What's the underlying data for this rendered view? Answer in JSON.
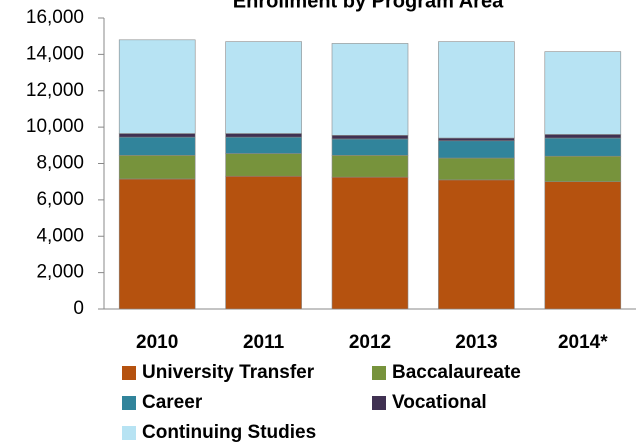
{
  "chart_data": {
    "type": "stacked_bar",
    "title": "Enrollment by Program Area",
    "categories": [
      "2010",
      "2011",
      "2012",
      "2013",
      "2014*"
    ],
    "series": [
      {
        "name": "University Transfer",
        "color": "#b5520f",
        "values": [
          7150,
          7300,
          7250,
          7100,
          7000
        ]
      },
      {
        "name": "Baccalaureate",
        "color": "#77933c",
        "values": [
          1300,
          1250,
          1200,
          1200,
          1400
        ]
      },
      {
        "name": "Career",
        "color": "#31849b",
        "values": [
          1000,
          900,
          900,
          950,
          1000
        ]
      },
      {
        "name": "Vocational",
        "color": "#403152",
        "values": [
          200,
          200,
          200,
          150,
          200
        ]
      },
      {
        "name": "Continuing Studies",
        "color": "#b7e3f3",
        "values": [
          5150,
          5050,
          5050,
          5300,
          4550
        ]
      }
    ],
    "ylim": [
      0,
      16000
    ],
    "yticks": [
      0,
      {
        "value": 2000,
        "label": "2,000"
      },
      {
        "value": 4000,
        "label": "4,000"
      },
      {
        "value": 6000,
        "label": "6,000"
      },
      {
        "value": 8000,
        "label": "8,000"
      },
      {
        "value": 10000,
        "label": "10,000"
      },
      {
        "value": 12000,
        "label": "12,000"
      },
      {
        "value": 14000,
        "label": "14,000"
      },
      {
        "value": 16000,
        "label": "16,000"
      }
    ]
  }
}
